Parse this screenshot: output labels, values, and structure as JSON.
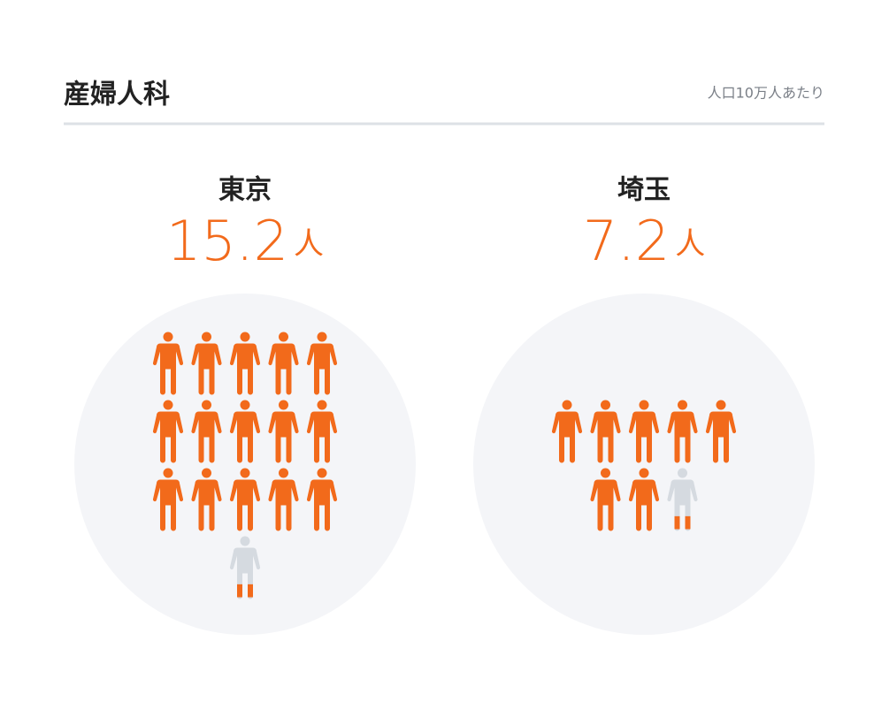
{
  "header": {
    "title": "産婦人科",
    "subtitle": "人口10万人あたり"
  },
  "chart_data": [
    {
      "type": "pictogram",
      "title": "東京",
      "value": 15.2,
      "unit": "人",
      "color": "#f26a1b",
      "empty_color": "#d5dae0"
    },
    {
      "type": "pictogram",
      "title": "埼玉",
      "value": 7.2,
      "unit": "人",
      "color": "#f26a1b",
      "empty_color": "#d5dae0"
    }
  ]
}
